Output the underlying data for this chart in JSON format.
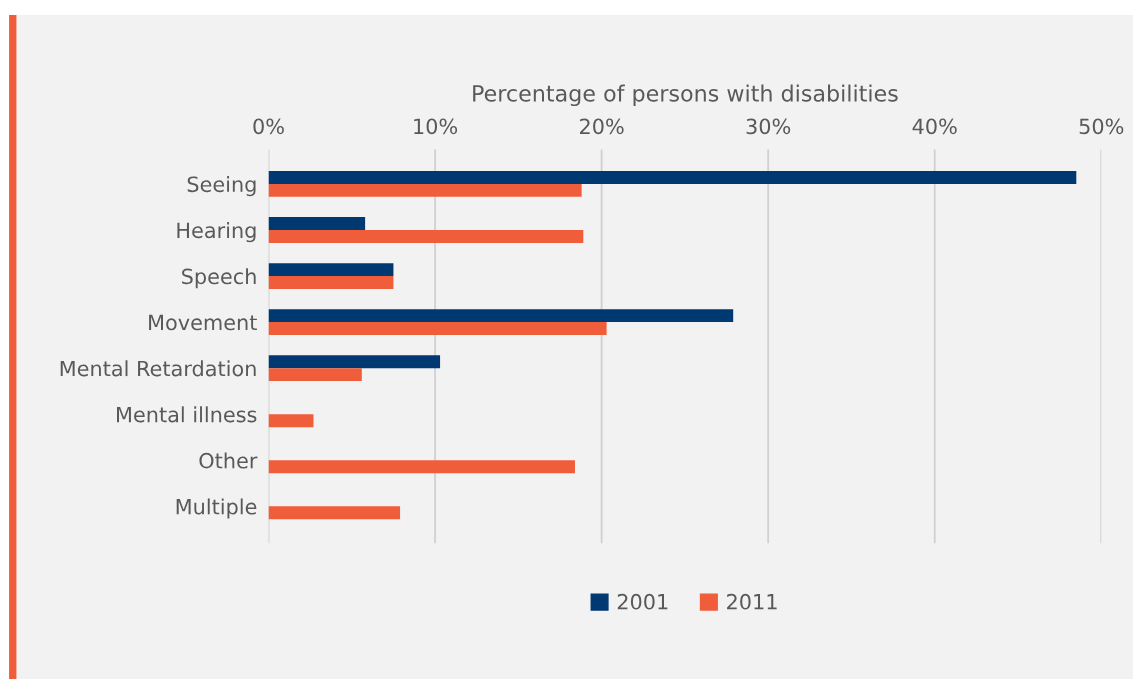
{
  "chart_data": {
    "type": "bar",
    "orientation": "horizontal",
    "xlabel": "Percentage of persons with disabilities",
    "categories": [
      "Seeing",
      "Hearing",
      "Speech",
      "Movement",
      "Mental Retardation",
      "Mental illness",
      "Other",
      "Multiple"
    ],
    "series": [
      {
        "name": "2001",
        "color": "#003871",
        "values": [
          48.5,
          5.8,
          7.5,
          27.9,
          10.3,
          null,
          null,
          null
        ]
      },
      {
        "name": "2011",
        "color": "#f05d3b",
        "values": [
          18.8,
          18.9,
          7.5,
          20.3,
          5.6,
          2.7,
          18.4,
          7.9
        ]
      }
    ],
    "xlim": [
      0,
      50
    ],
    "xticks": [
      {
        "value": 0,
        "label": "0%"
      },
      {
        "value": 10,
        "label": "10%"
      },
      {
        "value": 20,
        "label": "20%"
      },
      {
        "value": 30,
        "label": "30%"
      },
      {
        "value": 40,
        "label": "40%"
      },
      {
        "value": 50,
        "label": "50%"
      }
    ],
    "grid": "x",
    "legend": "bottom"
  }
}
